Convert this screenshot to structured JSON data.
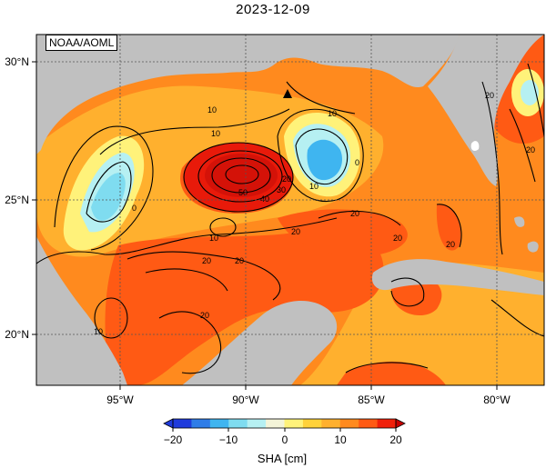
{
  "title": "2023-12-09",
  "credit": "NOAA/AOML",
  "map": {
    "lon_ticks": [
      "95°W",
      "90°W",
      "85°W",
      "80°W"
    ],
    "lat_ticks": [
      "30°N",
      "25°N",
      "20°N"
    ],
    "extent": {
      "lon": [
        -98,
        -78
      ],
      "lat": [
        18,
        31.5
      ]
    },
    "land_color": "#c0c0c0",
    "contour_labels": [
      "10",
      "10",
      "10",
      "0",
      "0",
      "20",
      "30",
      "40",
      "50",
      "10",
      "20",
      "20",
      "20",
      "20",
      "20",
      "10",
      "20",
      "20",
      "10",
      "20",
      "20"
    ]
  },
  "colorbar": {
    "label": "SHA [cm]",
    "ticks": [
      "−20",
      "−10",
      "0",
      "10",
      "20"
    ],
    "range": [
      -20,
      20
    ],
    "colors": [
      "#1f3bdc",
      "#2f7de8",
      "#3fb5f0",
      "#7fdcf0",
      "#b6f0f2",
      "#f4f4d8",
      "#fff27a",
      "#ffd23a",
      "#ffb02e",
      "#ff8a1e",
      "#ff5a14",
      "#f0200a"
    ]
  }
}
